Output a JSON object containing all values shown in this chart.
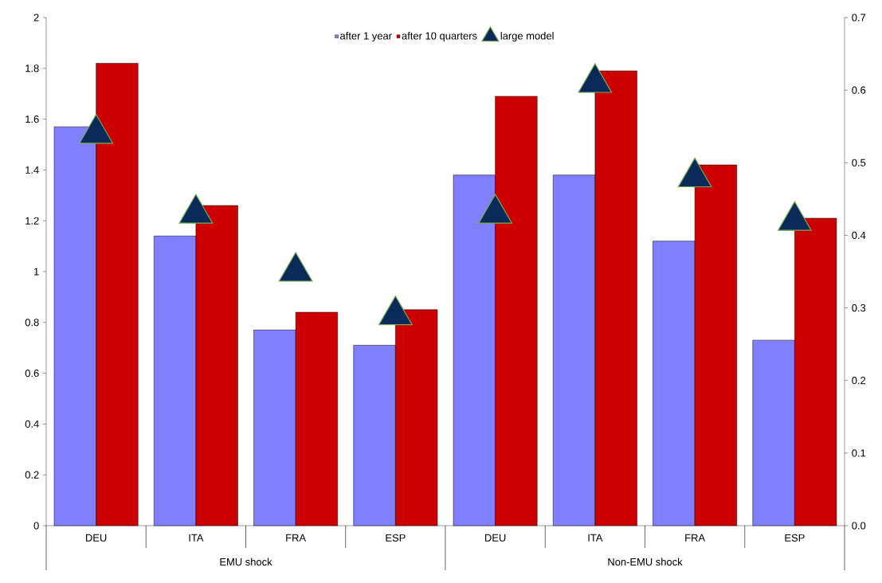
{
  "chart_data": {
    "type": "bar",
    "categories": [
      "DEU",
      "ITA",
      "FRA",
      "ESP",
      "DEU",
      "ITA",
      "FRA",
      "ESP"
    ],
    "series": [
      {
        "name": "after 1 year",
        "color": "#8080ff",
        "values": [
          1.57,
          1.14,
          0.77,
          0.71,
          1.38,
          1.38,
          1.12,
          0.73
        ]
      },
      {
        "name": "after 10 quarters",
        "color": "#cc0000",
        "values": [
          1.82,
          1.26,
          0.84,
          0.85,
          1.69,
          1.79,
          1.42,
          1.21
        ]
      },
      {
        "name": "large model",
        "type": "scatter",
        "axis": "y2",
        "marker": "triangle",
        "color": "#0a2a5a",
        "values": [
          0.54,
          0.43,
          0.35,
          0.29,
          0.43,
          0.61,
          0.48,
          0.42
        ]
      }
    ],
    "ylim": [
      0,
      2
    ],
    "yticks": [
      0,
      0.2,
      0.4,
      0.6,
      0.8,
      1,
      1.2,
      1.4,
      1.6,
      1.8,
      2
    ],
    "y2lim": [
      0,
      0.7
    ],
    "y2ticks": [
      {
        "value": 0,
        "label": "0.0"
      },
      0.1,
      0.2,
      0.3,
      0.4,
      0.5,
      0.6,
      0.7
    ],
    "legend": "top",
    "grid": false,
    "annotations": [
      "EMU shock",
      "Non-EMU shock"
    ]
  }
}
